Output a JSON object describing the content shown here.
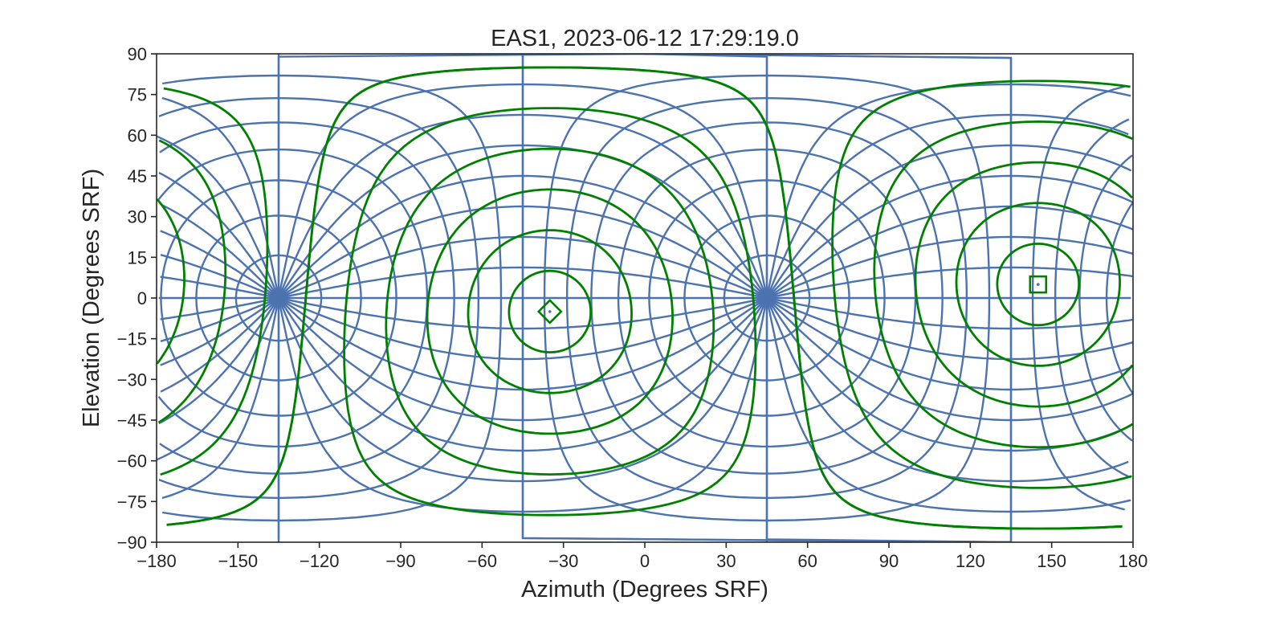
{
  "chart_data": {
    "type": "line",
    "title": "EAS1, 2023-06-12 17:29:19.0",
    "xlabel": "Azimuth (Degrees SRF)",
    "ylabel": "Elevation (Degrees SRF)",
    "xlim": [
      -180,
      180
    ],
    "ylim": [
      -90,
      90
    ],
    "xticks": [
      -180,
      -150,
      -120,
      -90,
      -60,
      -30,
      0,
      30,
      60,
      90,
      120,
      150,
      180
    ],
    "yticks": [
      90,
      75,
      60,
      45,
      30,
      15,
      0,
      -15,
      -30,
      -45,
      -60,
      -75,
      -90
    ],
    "xtick_labels": [
      "−180",
      "−150",
      "−120",
      "−90",
      "−60",
      "−30",
      "0",
      "30",
      "60",
      "90",
      "120",
      "150",
      "180"
    ],
    "ytick_labels": [
      "90",
      "75",
      "60",
      "45",
      "30",
      "15",
      "0",
      "−15",
      "−30",
      "−45",
      "−60",
      "−75",
      "−90"
    ],
    "grid": false,
    "series": [
      {
        "role": "instrument field-of-view grid",
        "color": "#4c72b0",
        "pole_azimuths": [
          45,
          -135
        ],
        "elevation_rings_deg": [
          0,
          11.25,
          22.5,
          33.75,
          45,
          56.25,
          67.5,
          78.75
        ],
        "azimuth_sectors_deg": [
          -45,
          -33.75,
          -22.5,
          -11.25,
          0,
          11.25,
          22.5,
          33.75,
          45,
          56.25,
          67.5,
          78.75,
          90,
          101.25,
          112.5,
          123.75,
          135,
          146.25,
          157.5,
          168.75,
          180,
          191.25,
          202.5,
          213.75,
          225,
          236.25,
          247.5,
          258.75,
          270,
          281.25,
          292.5,
          303.75
        ]
      },
      {
        "role": "angle contours around marker centres",
        "color": "#008000",
        "centers": [
          [
            -35,
            -5
          ],
          [
            145,
            5
          ]
        ],
        "contour_angles_deg": [
          15,
          30,
          45,
          60,
          75,
          90
        ]
      }
    ],
    "markers": [
      {
        "shape": "diamond",
        "azimuth": -35,
        "elevation": -5,
        "color": "#008000"
      },
      {
        "shape": "square",
        "azimuth": 145,
        "elevation": 5,
        "color": "#008000"
      }
    ]
  }
}
